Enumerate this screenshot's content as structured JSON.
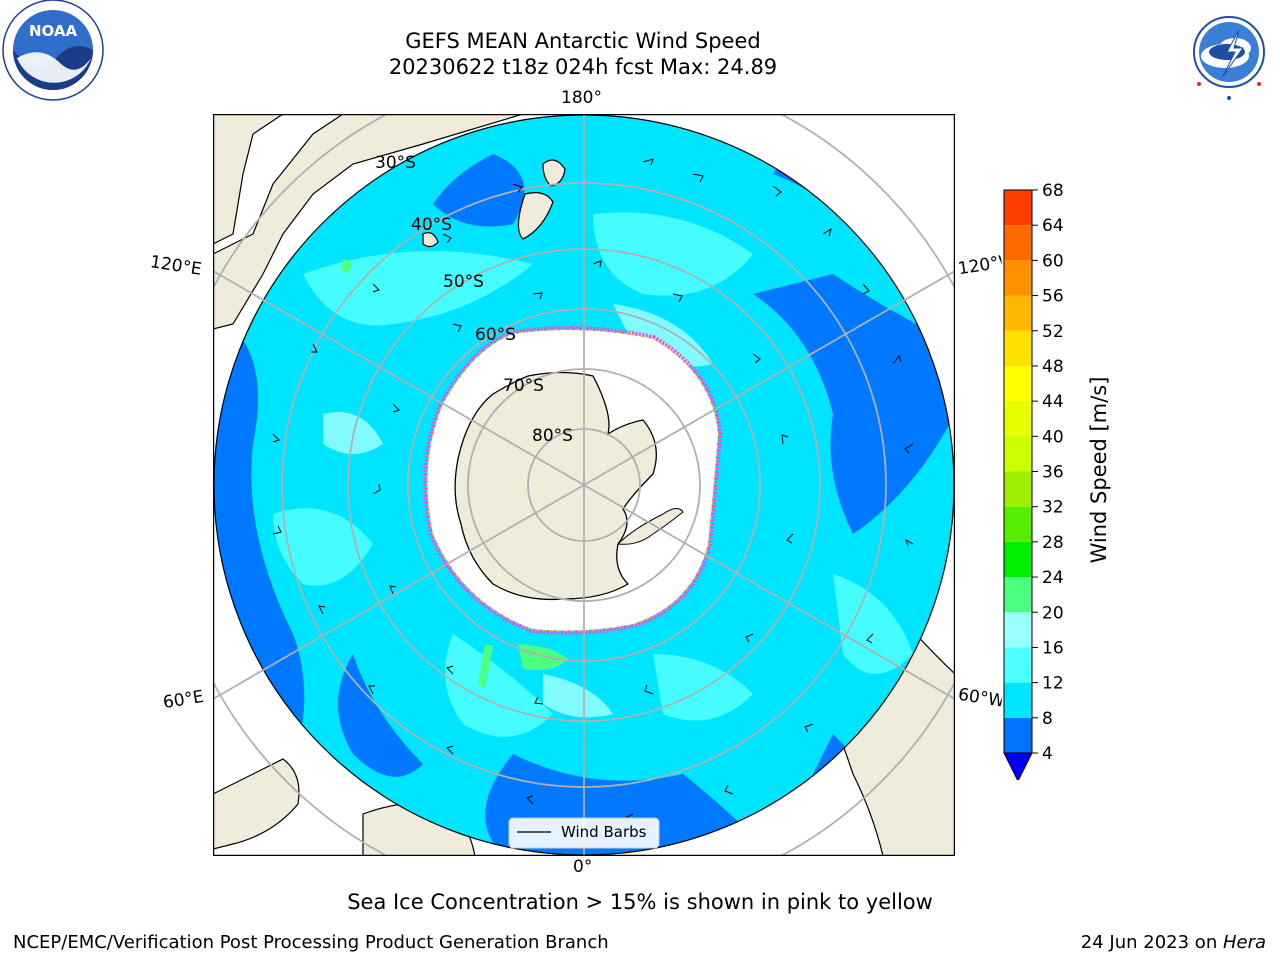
{
  "header": {
    "title_line1": "GEFS MEAN Antarctic Wind Speed",
    "title_line2": "20230622 t18z 024h fcst   Max: 24.89"
  },
  "map": {
    "lon_labels": {
      "top": "180°",
      "bottom": "0°",
      "upper_left": "120°E",
      "upper_right": "120°W",
      "lower_left": "60°E",
      "lower_right": "60°W"
    },
    "lat_labels": [
      "30°S",
      "40°S",
      "50°S",
      "60°S",
      "70°S",
      "80°S"
    ],
    "legend_label": "Wind Barbs",
    "colors": {
      "land": "#efecdc",
      "ice": "#ffffff",
      "ice_edge": "#ff44dd",
      "graticule": "#b0b0b0"
    }
  },
  "colorbar": {
    "label": "Wind Speed [m/s]",
    "ticks": [
      "4",
      "8",
      "12",
      "16",
      "20",
      "24",
      "28",
      "32",
      "36",
      "40",
      "44",
      "48",
      "52",
      "56",
      "60",
      "64",
      "68"
    ],
    "colors": [
      "#0072ff",
      "#00e5ff",
      "#4dffff",
      "#99ffff",
      "#4dff80",
      "#00ee00",
      "#55ee00",
      "#a0ee00",
      "#ccff00",
      "#e6ff00",
      "#ffff00",
      "#ffe000",
      "#ffb800",
      "#ff9000",
      "#ff6a00",
      "#ff3e00"
    ],
    "extend_color": "#0000ff"
  },
  "footer": {
    "note": "Sea Ice Concentration > 15% is shown in pink to yellow",
    "left": "NCEP/EMC/Verification Post Processing Product Generation Branch",
    "date": "24 Jun 2023 on ",
    "machine": "Hera"
  },
  "logos": {
    "noaa": "NOAA",
    "nws_text": "NATIONAL WEATHER SERVICE"
  }
}
